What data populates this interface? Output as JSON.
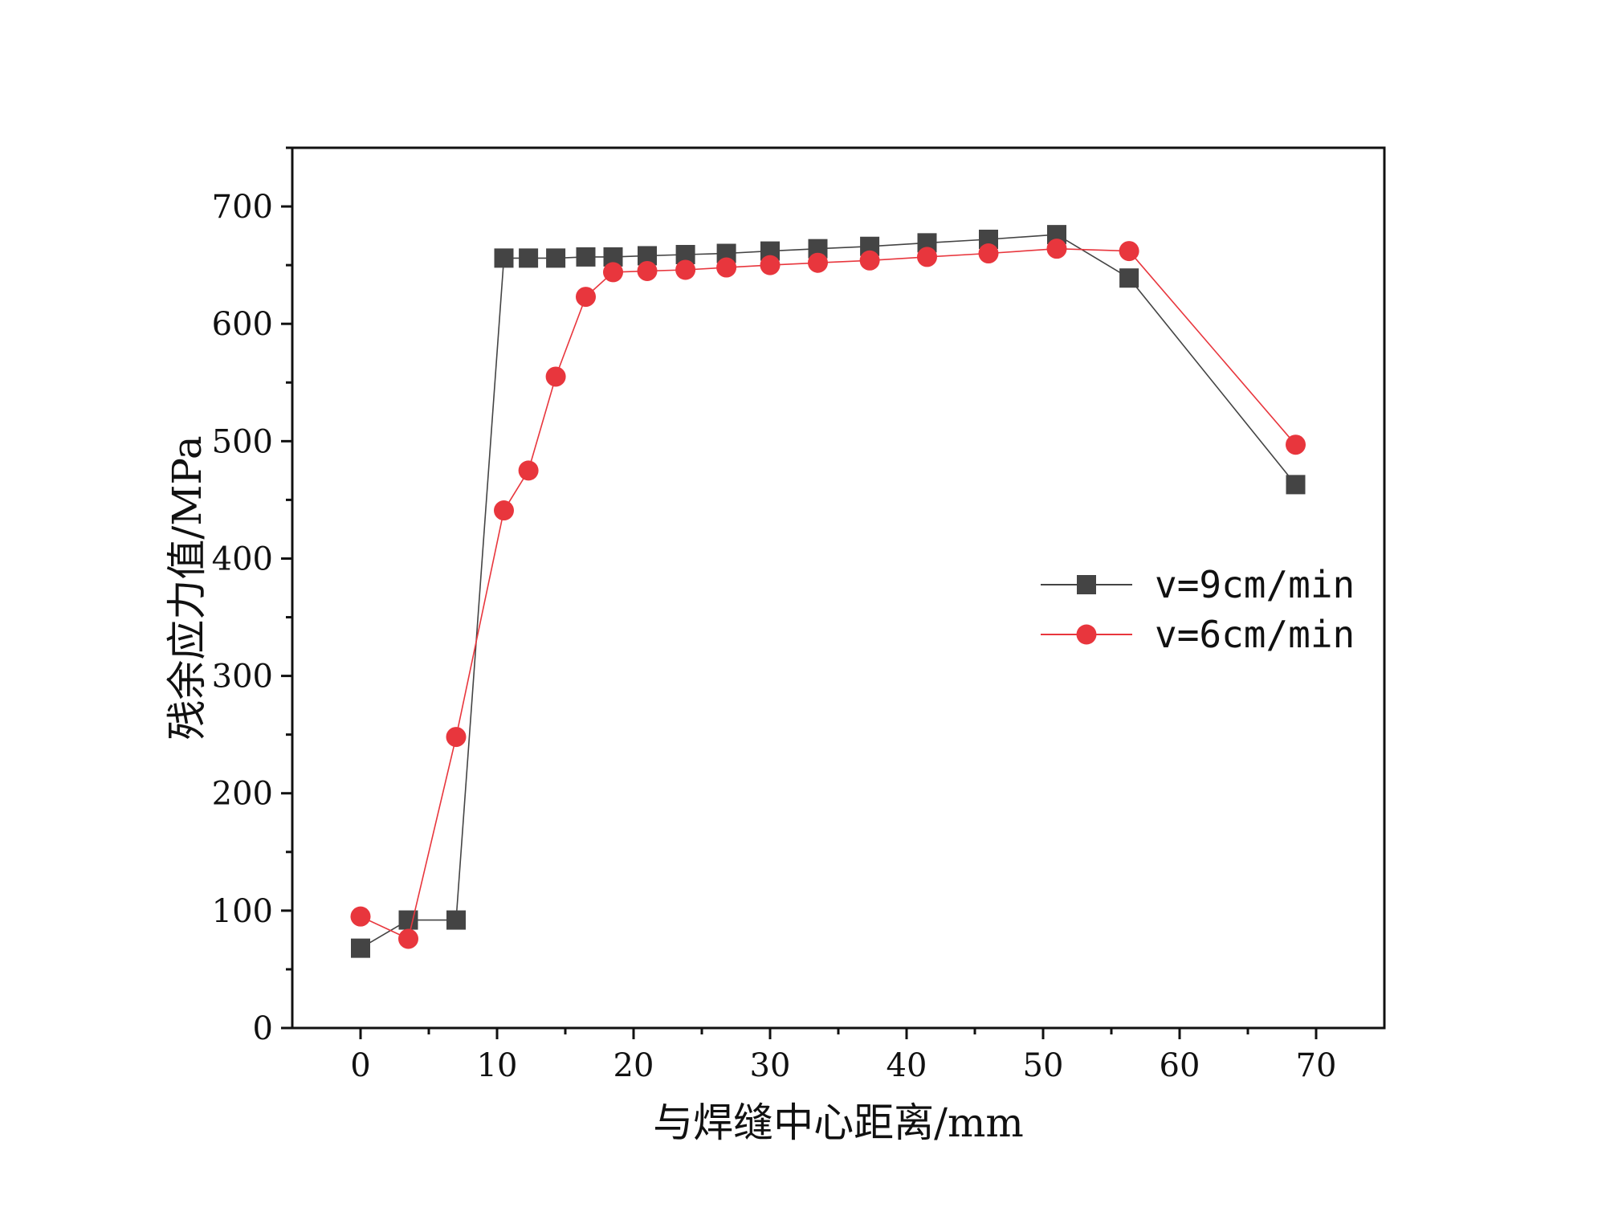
{
  "chart_data": {
    "type": "line",
    "title": "",
    "xlabel": "与焊缝中心距离/mm",
    "ylabel": "残余应力值/MPa",
    "xlim": [
      -5,
      75
    ],
    "ylim": [
      0,
      750
    ],
    "x_ticks": [
      0,
      10,
      20,
      30,
      40,
      50,
      60,
      70
    ],
    "x_tick_labels": [
      "0",
      "10",
      "20",
      "30",
      "40",
      "50",
      "60",
      "70"
    ],
    "y_ticks": [
      0,
      100,
      200,
      300,
      400,
      500,
      600,
      700
    ],
    "y_tick_labels": [
      "0",
      "100",
      "200",
      "300",
      "400",
      "500",
      "600",
      "700"
    ],
    "grid": false,
    "legend_position": "right",
    "series": [
      {
        "name": "v=9cm/min",
        "color": "#444444",
        "marker": "square",
        "x": [
          0,
          3.5,
          7,
          10.5,
          12.3,
          14.3,
          16.5,
          18.5,
          21,
          23.8,
          26.8,
          30,
          33.5,
          37.3,
          41.5,
          46,
          51,
          56.3,
          68.5
        ],
        "y": [
          68,
          92,
          92,
          656,
          656,
          656,
          657,
          657,
          658,
          659,
          660,
          662,
          664,
          666,
          669,
          672,
          676,
          639,
          463
        ]
      },
      {
        "name": "v=6cm/min",
        "color": "#e8363d",
        "marker": "circle",
        "x": [
          0,
          3.5,
          7,
          10.5,
          12.3,
          14.3,
          16.5,
          18.5,
          21,
          23.8,
          26.8,
          30,
          33.5,
          37.3,
          41.5,
          46,
          51,
          56.3,
          68.5
        ],
        "y": [
          95,
          76,
          248,
          441,
          475,
          555,
          623,
          644,
          645,
          646,
          648,
          650,
          652,
          654,
          657,
          660,
          664,
          662,
          497
        ]
      }
    ]
  }
}
